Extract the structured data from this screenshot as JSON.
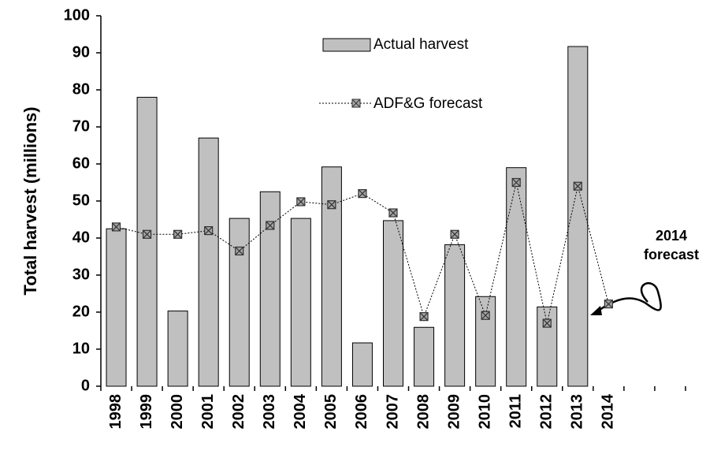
{
  "chart_data": {
    "type": "bar",
    "y_label": "Total harvest (millions)",
    "categories": [
      "1998",
      "1999",
      "2000",
      "2001",
      "2002",
      "2003",
      "2004",
      "2005",
      "2006",
      "2007",
      "2008",
      "2009",
      "2010",
      "2011",
      "2012",
      "2013",
      "2014",
      null,
      null
    ],
    "series": [
      {
        "name": "Actual harvest",
        "type": "bar",
        "color": "#c0c0c0",
        "values": [
          42.5,
          78,
          20.3,
          67,
          45.3,
          52.5,
          45.3,
          59.2,
          11.7,
          44.7,
          15.9,
          38.2,
          24.2,
          59,
          21.4,
          91.7,
          null,
          null,
          null
        ]
      },
      {
        "name": "ADF&G forecast",
        "type": "line",
        "color": "#000000",
        "values": [
          43,
          41,
          41,
          42,
          36.5,
          43.4,
          49.8,
          49,
          52,
          46.8,
          18.8,
          41,
          19.1,
          55,
          17,
          54,
          22.2,
          null,
          null
        ]
      }
    ],
    "annotation": [
      "2014",
      "forecast"
    ],
    "ylim": [
      0,
      100
    ],
    "yticks": [
      0,
      10,
      20,
      30,
      40,
      50,
      60,
      70,
      80,
      90,
      100
    ]
  }
}
